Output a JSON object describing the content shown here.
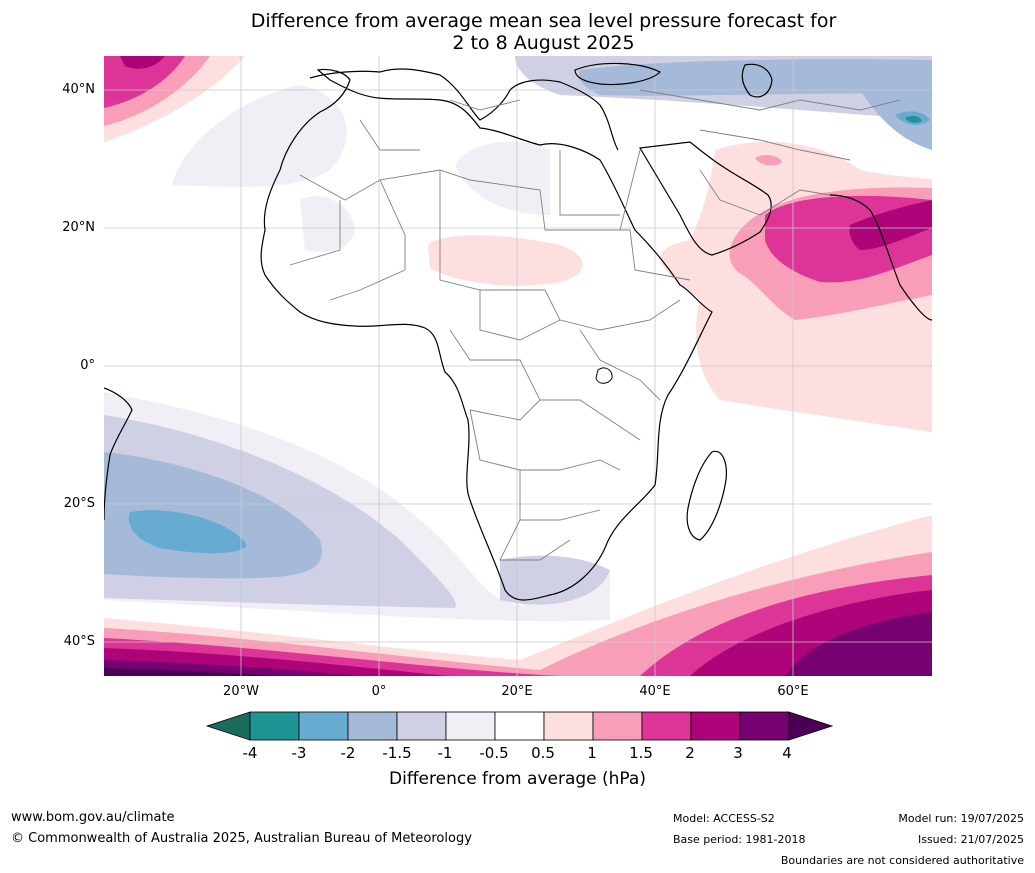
{
  "title": {
    "line1": "Difference from average mean sea level pressure forecast for",
    "line2": "2 to 8 August 2025"
  },
  "axes": {
    "lat_labels": [
      "40°N",
      "20°N",
      "0°",
      "20°S",
      "40°S"
    ],
    "lon_labels": [
      "20°W",
      "0°",
      "20°E",
      "40°E",
      "60°E"
    ]
  },
  "colorbar": {
    "ticks": [
      "-4",
      "-3",
      "-2",
      "-1.5",
      "-1",
      "-0.5",
      "0.5",
      "1",
      "1.5",
      "2",
      "3",
      "4"
    ],
    "colors": [
      "#1a6b5e",
      "#1e9494",
      "#68abd0",
      "#a5b9d8",
      "#cfd0e4",
      "#f2eef5",
      "#ffffff",
      "#fedfdf",
      "#f99eb9",
      "#dd3597",
      "#ad0479",
      "#760170",
      "#4b0055"
    ],
    "title": "Difference from average (hPa)"
  },
  "footer": {
    "website": "www.bom.gov.au/climate",
    "copyright": "© Commonwealth of Australia 2025, Australian Bureau of Meteorology",
    "model": "Model: ACCESS-S2",
    "base_period": "Base period: 1981-2018",
    "model_run": "Model run: 19/07/2025",
    "issued": "Issued: 21/07/2025",
    "disclaimer": "Boundaries are not considered authoritative"
  }
}
